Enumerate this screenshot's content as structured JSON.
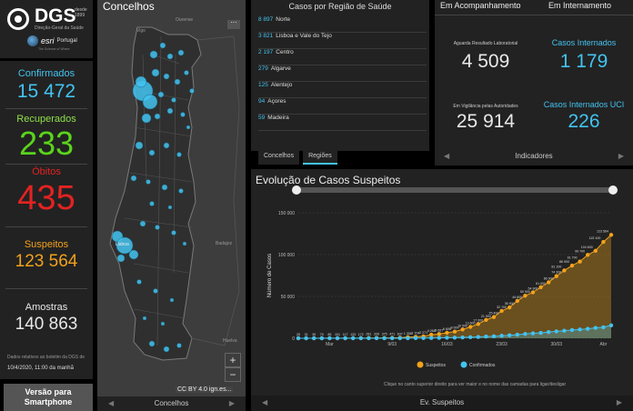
{
  "brand": {
    "name": "DGS",
    "since": "desde 1899",
    "subtitle": "Direção-Geral da Saúde",
    "partner": "esri",
    "partner_country": "Portugal",
    "partner_tag": "The Science of Where"
  },
  "stats": {
    "confirmed_label": "Confirmados",
    "confirmed": "15 472",
    "recovered_label": "Recuperados",
    "recovered": "233",
    "deaths_label": "Óbitos",
    "deaths": "435",
    "suspects_label": "Suspeitos",
    "suspects": "123 564",
    "samples_label": "Amostras",
    "samples": "140 863",
    "footnote": "Dados relativos ao boletim da DGS de",
    "updated": "10/4/2020, 11:00 da manhã"
  },
  "smartphone_button": "Versão para Smartphone",
  "map": {
    "title": "Concelhos",
    "footer": "Concelhos",
    "attribution": "CC BY 4.0 ign.es...",
    "labels": {
      "vigo": "Vigo",
      "ourense": "Ourense",
      "lisbon": "Lisboa",
      "badajoz": "Badajoz",
      "huelva": "Huelva"
    },
    "zoom_in": "+",
    "zoom_out": "−",
    "menu": "⋯"
  },
  "regions": {
    "title": "Casos por Região de Saúde",
    "items": [
      {
        "num": "8 897",
        "name": "Norte"
      },
      {
        "num": "3 821",
        "name": "Lisboa e Vale do Tejo"
      },
      {
        "num": "2 197",
        "name": "Centro"
      },
      {
        "num": "279",
        "name": "Algarve"
      },
      {
        "num": "125",
        "name": "Alentejo"
      },
      {
        "num": "94",
        "name": "Açores"
      },
      {
        "num": "59",
        "name": "Madeira"
      }
    ],
    "tabs": [
      "Concelhos",
      "Regiões"
    ]
  },
  "indicators": {
    "head_left": "Em Acompanhamento",
    "head_right": "Em Internamento",
    "awaiting_label": "Aguarda Resultado Laboratorial",
    "awaiting": "4 509",
    "hosp_label": "Casos Internados",
    "hosp": "1 179",
    "vigil_label": "Em Vigilância pelas Autoridades",
    "vigil": "25 914",
    "icu_label": "Casos Internados UCI",
    "icu": "226",
    "footer": "Indicadores"
  },
  "evolution": {
    "title": "Evolução de Casos Suspeitos",
    "hint": "Clique no canto superior direito para ver maior e no nome das camadas para ligar/desligar",
    "footer": "Ev. Suspeitos"
  },
  "colors": {
    "confirmed": "#43c3f0",
    "recovered": "#5ad41c",
    "deaths": "#e32222",
    "suspects": "#f2a21b",
    "samples": "#e8e8e8"
  },
  "chart_data": {
    "type": "area",
    "ylabel": "Número de Casos",
    "yticks": [
      "0",
      "50 000",
      "100 000",
      "150 000"
    ],
    "ylim": [
      0,
      150000
    ],
    "xticks": [
      "Mar",
      "9/03",
      "16/03",
      "23/03",
      "30/03",
      "Abr"
    ],
    "legend": [
      "Suspeitos",
      "Confirmados"
    ],
    "series": [
      {
        "name": "Suspeitos",
        "color": "#f2a21b",
        "values": [
          25,
          31,
          39,
          70,
          85,
          101,
          117,
          133,
          172,
          281,
          339,
          375,
          471,
          637,
          1308,
          1704,
          2271,
          4268,
          5067,
          6608,
          8000,
          10500,
          13600,
          17000,
          21900,
          25400,
          32700,
          36900,
          44600,
          50900,
          54900,
          61000,
          66900,
          74300,
          81100,
          86900,
          91700,
          99700,
          104600,
          115100,
          123564
        ]
      },
      {
        "name": "Confirmados",
        "color": "#43c3f0",
        "values": [
          0,
          0,
          0,
          2,
          4,
          6,
          9,
          13,
          21,
          30,
          39,
          41,
          59,
          78,
          112,
          169,
          245,
          331,
          448,
          642,
          785,
          1020,
          1280,
          1600,
          2060,
          2362,
          2995,
          3544,
          4268,
          5170,
          5962,
          6408,
          7443,
          8251,
          9034,
          9886,
          10524,
          11278,
          12442,
          13141,
          15472
        ]
      }
    ],
    "point_labels": [
      "25",
      "31",
      "39",
      "70",
      "85",
      "101",
      "117",
      "133",
      "172",
      "281",
      "339",
      "375",
      "471",
      "637",
      "1 308",
      "1 704",
      "2 271",
      "4 268",
      "5 067",
      "6 608",
      "8 000",
      "10 500",
      "13 600",
      "17 000",
      "21 900",
      "25 400",
      "32 700",
      "36 900",
      "44 600",
      "50 900",
      "54 900",
      "61 000",
      "66 900",
      "74 300",
      "81 100",
      "86 900",
      "91 700",
      "99 700",
      "104 600",
      "115 100",
      "123 564"
    ]
  }
}
